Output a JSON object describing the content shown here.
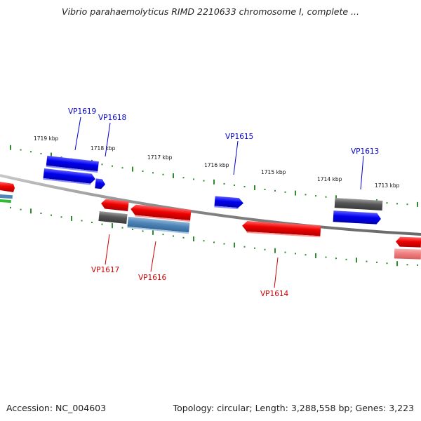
{
  "title": "Vibrio parahaemolyticus RIMD 2210633 chromosome I, complete ...",
  "footer": {
    "accession": "Accession: NC_004603",
    "summary": "Topology: circular; Length: 3,288,558 bp; Genes: 3,223"
  },
  "colors": {
    "backbone": "#8c8c8c",
    "tick_mark": "#2e8b2e",
    "forward_gene": "#0000ee",
    "reverse_gene": "#ee0000",
    "other_gene": "#555555",
    "steelblue_gene": "#4f86b8",
    "pink_gene": "#f08080",
    "forward_label": "#0000cc",
    "reverse_label": "#cc0000"
  },
  "ruler": {
    "tick_labels": [
      "1719 kbp",
      "1718 kbp",
      "1717 kbp",
      "1716 kbp",
      "1715 kbp",
      "1714 kbp",
      "1713 kbp"
    ]
  },
  "genes": {
    "forward": [
      "VP1619",
      "VP1618",
      "VP1615",
      "VP1613"
    ],
    "reverse": [
      "VP1617",
      "VP1616",
      "VP1614"
    ]
  }
}
